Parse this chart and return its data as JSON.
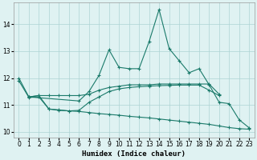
{
  "xlabel": "Humidex (Indice chaleur)",
  "background_color": "#dff2f2",
  "grid_color": "#aed4d4",
  "line_color": "#1a7a6a",
  "xlim": [
    -0.5,
    23.5
  ],
  "ylim": [
    9.8,
    14.8
  ],
  "yticks": [
    10,
    11,
    12,
    13,
    14
  ],
  "xticks": [
    0,
    1,
    2,
    3,
    4,
    5,
    6,
    7,
    8,
    9,
    10,
    11,
    12,
    13,
    14,
    15,
    16,
    17,
    18,
    19,
    20,
    21,
    22,
    23
  ],
  "series": [
    {
      "x": [
        0,
        1,
        6,
        7,
        8,
        9,
        10,
        11,
        12,
        13,
        14,
        15,
        16,
        17,
        18,
        19,
        20,
        21,
        22,
        23
      ],
      "y": [
        12.0,
        11.3,
        11.15,
        11.5,
        12.1,
        13.05,
        12.4,
        12.35,
        12.35,
        13.35,
        14.55,
        13.1,
        12.65,
        12.2,
        12.35,
        11.75,
        11.1,
        11.05,
        10.45,
        10.15
      ]
    },
    {
      "x": [
        1,
        2,
        3,
        4,
        5,
        6,
        7,
        8,
        9,
        10,
        11,
        12,
        13,
        14,
        15,
        16,
        17,
        18,
        19,
        20
      ],
      "y": [
        11.3,
        11.35,
        11.35,
        11.35,
        11.35,
        11.35,
        11.4,
        11.55,
        11.65,
        11.7,
        11.75,
        11.75,
        11.75,
        11.78,
        11.78,
        11.78,
        11.78,
        11.78,
        11.78,
        11.4
      ]
    },
    {
      "x": [
        1,
        2,
        3,
        4,
        5,
        6,
        7,
        8,
        9,
        10,
        11,
        12,
        13,
        14,
        15,
        16,
        17,
        18,
        19,
        20
      ],
      "y": [
        11.3,
        11.35,
        10.85,
        10.8,
        10.78,
        10.8,
        11.1,
        11.3,
        11.5,
        11.6,
        11.65,
        11.68,
        11.7,
        11.72,
        11.73,
        11.74,
        11.74,
        11.74,
        11.55,
        11.35
      ]
    },
    {
      "x": [
        0,
        1,
        2,
        3,
        4,
        5,
        6,
        7,
        8,
        9,
        10,
        11,
        12,
        13,
        14,
        15,
        16,
        17,
        18,
        19,
        20,
        21,
        22,
        23
      ],
      "y": [
        11.9,
        11.28,
        11.3,
        10.85,
        10.82,
        10.78,
        10.76,
        10.72,
        10.68,
        10.65,
        10.62,
        10.58,
        10.55,
        10.52,
        10.48,
        10.44,
        10.4,
        10.36,
        10.32,
        10.28,
        10.22,
        10.16,
        10.12,
        10.1
      ]
    }
  ]
}
